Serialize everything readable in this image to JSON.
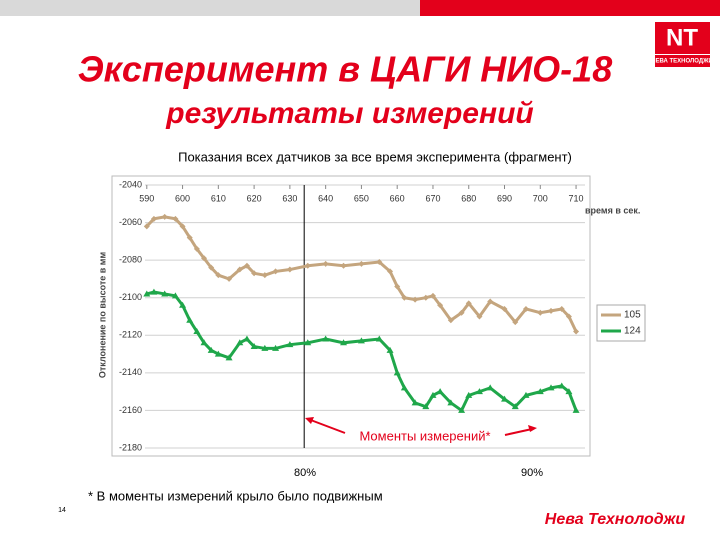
{
  "slide": {
    "title": "Эксперимент в ЦАГИ НИО-18",
    "subtitle": "результаты измерений",
    "logo_text": "НЕВА ТЕХНОЛОДЖИ",
    "footnote": "* В моменты измерений крыло было подвижным",
    "page_number": "14",
    "company": "Нева Технолоджи"
  },
  "chart_data": {
    "type": "line",
    "title": "Показания всех датчиков за все время эксперимента (фрагмент)",
    "y_label": "Отклонение по высоте в мм",
    "x_label": "время в сек.",
    "annotation": "Моменты измерений*",
    "percent_labels": [
      "80%",
      "90%"
    ],
    "marker_line_x": 634,
    "x": [
      590,
      592,
      595,
      598,
      600,
      602,
      604,
      606,
      608,
      610,
      613,
      616,
      618,
      620,
      623,
      626,
      630,
      635,
      640,
      645,
      650,
      655,
      658,
      660,
      662,
      665,
      668,
      670,
      672,
      675,
      678,
      680,
      683,
      686,
      690,
      693,
      696,
      700,
      703,
      706,
      708,
      710
    ],
    "series": [
      {
        "name": "105",
        "color": "#c4a57e",
        "values": [
          -2062,
          -2058,
          -2057,
          -2058,
          -2062,
          -2068,
          -2074,
          -2079,
          -2084,
          -2088,
          -2090,
          -2085,
          -2083,
          -2087,
          -2088,
          -2086,
          -2085,
          -2083,
          -2082,
          -2083,
          -2082,
          -2081,
          -2086,
          -2094,
          -2100,
          -2101,
          -2100,
          -2099,
          -2104,
          -2112,
          -2108,
          -2103,
          -2110,
          -2102,
          -2106,
          -2113,
          -2106,
          -2108,
          -2107,
          -2106,
          -2110,
          -2118
        ]
      },
      {
        "name": "124",
        "color": "#1fa74a",
        "values": [
          -2098,
          -2097,
          -2098,
          -2099,
          -2104,
          -2112,
          -2118,
          -2124,
          -2128,
          -2130,
          -2132,
          -2124,
          -2122,
          -2126,
          -2127,
          -2127,
          -2125,
          -2124,
          -2122,
          -2124,
          -2123,
          -2122,
          -2128,
          -2140,
          -2148,
          -2156,
          -2158,
          -2152,
          -2150,
          -2156,
          -2160,
          -2152,
          -2150,
          -2148,
          -2154,
          -2158,
          -2152,
          -2150,
          -2148,
          -2147,
          -2150,
          -2160
        ]
      }
    ],
    "xlim": [
      589.5,
      712.5
    ],
    "xticks": [
      590,
      600,
      610,
      620,
      630,
      640,
      650,
      660,
      670,
      680,
      690,
      700,
      710
    ],
    "ylim": [
      -2180,
      -2040
    ],
    "yticks": [
      -2040,
      -2060,
      -2080,
      -2100,
      -2120,
      -2140,
      -2160,
      -2180
    ],
    "grid": true,
    "legend": "right"
  }
}
